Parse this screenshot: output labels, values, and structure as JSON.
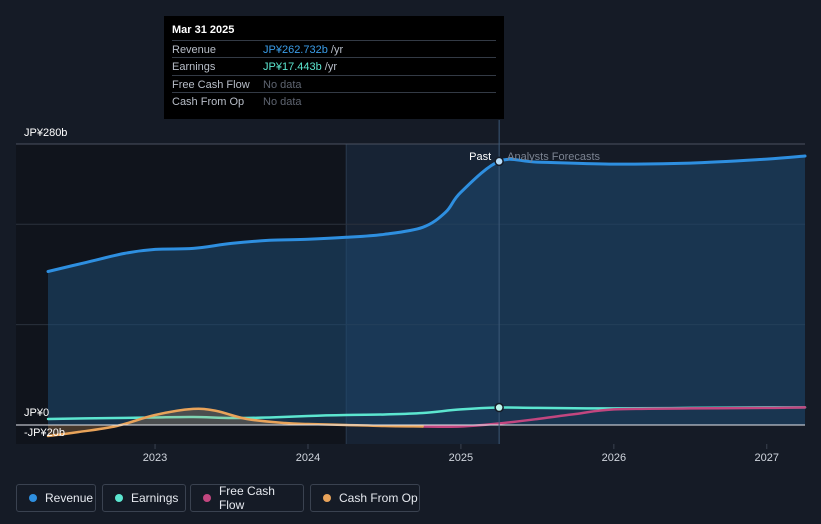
{
  "tooltip": {
    "date": "Mar 31 2025",
    "rows": [
      {
        "label": "Revenue",
        "value": "JP¥262.732b",
        "unit": " /yr",
        "color": "#3a9de8"
      },
      {
        "label": "Earnings",
        "value": "JP¥17.443b",
        "unit": " /yr",
        "color": "#5ce6d0"
      },
      {
        "label": "Free Cash Flow",
        "value": "No data",
        "unit": "",
        "color": "#5e6470"
      },
      {
        "label": "Cash From Op",
        "value": "No data",
        "unit": "",
        "color": "#5e6470"
      }
    ]
  },
  "legend": [
    {
      "label": "Revenue",
      "color": "#2e8fe0"
    },
    {
      "label": "Earnings",
      "color": "#5ce6d0"
    },
    {
      "label": "Free Cash Flow",
      "color": "#c2467f"
    },
    {
      "label": "Cash From Op",
      "color": "#e8a35a"
    }
  ],
  "chart_data": {
    "type": "line",
    "x_range": [
      2022.3,
      2027.25
    ],
    "ylim": [
      -20,
      280
    ],
    "y_ticks": [
      {
        "value": 280,
        "label": "JP¥280b"
      },
      {
        "value": 0,
        "label": "JP¥0"
      },
      {
        "value": -20,
        "label": "-JP¥20b"
      }
    ],
    "x_ticks": [
      {
        "value": 2023,
        "label": "2023"
      },
      {
        "value": 2024,
        "label": "2024"
      },
      {
        "value": 2025,
        "label": "2025"
      },
      {
        "value": 2026,
        "label": "2026"
      },
      {
        "value": 2027,
        "label": "2027"
      }
    ],
    "split_x": 2025.25,
    "past_label": "Past",
    "forecast_label": "Analysts Forecasts",
    "past_shade_start": 2024.25,
    "series": [
      {
        "name": "Revenue",
        "color": "#2e8fe0",
        "fill": true,
        "points": [
          [
            2022.3,
            153
          ],
          [
            2022.55,
            162
          ],
          [
            2022.8,
            171
          ],
          [
            2023.0,
            175
          ],
          [
            2023.25,
            176
          ],
          [
            2023.5,
            181
          ],
          [
            2023.75,
            184
          ],
          [
            2024.0,
            185
          ],
          [
            2024.25,
            187
          ],
          [
            2024.5,
            190
          ],
          [
            2024.75,
            197
          ],
          [
            2024.9,
            212
          ],
          [
            2025.0,
            232
          ],
          [
            2025.25,
            262.7
          ],
          [
            2025.5,
            262
          ],
          [
            2026.0,
            260
          ],
          [
            2026.5,
            261
          ],
          [
            2027.0,
            265
          ],
          [
            2027.25,
            268
          ]
        ]
      },
      {
        "name": "Earnings",
        "color": "#5ce6d0",
        "points": [
          [
            2022.3,
            6
          ],
          [
            2022.75,
            7
          ],
          [
            2023.0,
            7.5
          ],
          [
            2023.25,
            8
          ],
          [
            2023.5,
            7
          ],
          [
            2023.75,
            7.5
          ],
          [
            2024.0,
            9
          ],
          [
            2024.25,
            10
          ],
          [
            2024.5,
            10.5
          ],
          [
            2024.75,
            12
          ],
          [
            2025.0,
            15.5
          ],
          [
            2025.25,
            17.4
          ],
          [
            2025.5,
            17
          ],
          [
            2026.0,
            16.5
          ],
          [
            2026.5,
            17
          ],
          [
            2027.0,
            17.5
          ],
          [
            2027.25,
            17.5
          ]
        ]
      },
      {
        "name": "Free Cash Flow",
        "color": "#c2467f",
        "points": [
          [
            2024.75,
            -1.5
          ],
          [
            2025.0,
            -1.5
          ],
          [
            2025.25,
            1.5
          ],
          [
            2025.5,
            6
          ],
          [
            2025.75,
            11
          ],
          [
            2026.0,
            15.5
          ],
          [
            2026.5,
            16.5
          ],
          [
            2027.0,
            17
          ],
          [
            2027.25,
            17.5
          ]
        ]
      },
      {
        "name": "Cash From Op",
        "color": "#e8a35a",
        "fill": true,
        "points": [
          [
            2022.3,
            -11
          ],
          [
            2022.5,
            -7
          ],
          [
            2022.75,
            -1
          ],
          [
            2023.0,
            10
          ],
          [
            2023.25,
            16
          ],
          [
            2023.4,
            14
          ],
          [
            2023.6,
            6
          ],
          [
            2023.85,
            2
          ],
          [
            2024.0,
            1
          ],
          [
            2024.25,
            0
          ],
          [
            2024.5,
            -1
          ],
          [
            2024.75,
            -1.5
          ]
        ]
      }
    ]
  }
}
